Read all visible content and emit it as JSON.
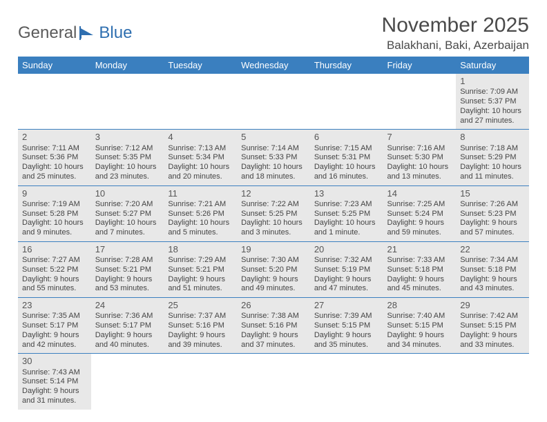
{
  "logo": {
    "text1": "General",
    "text2": "Blue"
  },
  "title": "November 2025",
  "location": "Balakhani, Baki, Azerbaijan",
  "colors": {
    "header_bg": "#3a7fbf",
    "header_text": "#ffffff",
    "shade_bg": "#e8e8e8",
    "row_border": "#3a7fbf",
    "text": "#444444",
    "logo_gray": "#5a5a5a",
    "logo_blue": "#2f6fb0"
  },
  "typography": {
    "title_fontsize": 30,
    "location_fontsize": 17,
    "header_fontsize": 13,
    "daynum_fontsize": 13,
    "cell_fontsize": 11
  },
  "weekdays": [
    "Sunday",
    "Monday",
    "Tuesday",
    "Wednesday",
    "Thursday",
    "Friday",
    "Saturday"
  ],
  "weeks": [
    [
      null,
      null,
      null,
      null,
      null,
      null,
      {
        "n": "1",
        "sr": "Sunrise: 7:09 AM",
        "ss": "Sunset: 5:37 PM",
        "dl": "Daylight: 10 hours and 27 minutes."
      }
    ],
    [
      {
        "n": "2",
        "sr": "Sunrise: 7:11 AM",
        "ss": "Sunset: 5:36 PM",
        "dl": "Daylight: 10 hours and 25 minutes."
      },
      {
        "n": "3",
        "sr": "Sunrise: 7:12 AM",
        "ss": "Sunset: 5:35 PM",
        "dl": "Daylight: 10 hours and 23 minutes."
      },
      {
        "n": "4",
        "sr": "Sunrise: 7:13 AM",
        "ss": "Sunset: 5:34 PM",
        "dl": "Daylight: 10 hours and 20 minutes."
      },
      {
        "n": "5",
        "sr": "Sunrise: 7:14 AM",
        "ss": "Sunset: 5:33 PM",
        "dl": "Daylight: 10 hours and 18 minutes."
      },
      {
        "n": "6",
        "sr": "Sunrise: 7:15 AM",
        "ss": "Sunset: 5:31 PM",
        "dl": "Daylight: 10 hours and 16 minutes."
      },
      {
        "n": "7",
        "sr": "Sunrise: 7:16 AM",
        "ss": "Sunset: 5:30 PM",
        "dl": "Daylight: 10 hours and 13 minutes."
      },
      {
        "n": "8",
        "sr": "Sunrise: 7:18 AM",
        "ss": "Sunset: 5:29 PM",
        "dl": "Daylight: 10 hours and 11 minutes."
      }
    ],
    [
      {
        "n": "9",
        "sr": "Sunrise: 7:19 AM",
        "ss": "Sunset: 5:28 PM",
        "dl": "Daylight: 10 hours and 9 minutes."
      },
      {
        "n": "10",
        "sr": "Sunrise: 7:20 AM",
        "ss": "Sunset: 5:27 PM",
        "dl": "Daylight: 10 hours and 7 minutes."
      },
      {
        "n": "11",
        "sr": "Sunrise: 7:21 AM",
        "ss": "Sunset: 5:26 PM",
        "dl": "Daylight: 10 hours and 5 minutes."
      },
      {
        "n": "12",
        "sr": "Sunrise: 7:22 AM",
        "ss": "Sunset: 5:25 PM",
        "dl": "Daylight: 10 hours and 3 minutes."
      },
      {
        "n": "13",
        "sr": "Sunrise: 7:23 AM",
        "ss": "Sunset: 5:25 PM",
        "dl": "Daylight: 10 hours and 1 minute."
      },
      {
        "n": "14",
        "sr": "Sunrise: 7:25 AM",
        "ss": "Sunset: 5:24 PM",
        "dl": "Daylight: 9 hours and 59 minutes."
      },
      {
        "n": "15",
        "sr": "Sunrise: 7:26 AM",
        "ss": "Sunset: 5:23 PM",
        "dl": "Daylight: 9 hours and 57 minutes."
      }
    ],
    [
      {
        "n": "16",
        "sr": "Sunrise: 7:27 AM",
        "ss": "Sunset: 5:22 PM",
        "dl": "Daylight: 9 hours and 55 minutes."
      },
      {
        "n": "17",
        "sr": "Sunrise: 7:28 AM",
        "ss": "Sunset: 5:21 PM",
        "dl": "Daylight: 9 hours and 53 minutes."
      },
      {
        "n": "18",
        "sr": "Sunrise: 7:29 AM",
        "ss": "Sunset: 5:21 PM",
        "dl": "Daylight: 9 hours and 51 minutes."
      },
      {
        "n": "19",
        "sr": "Sunrise: 7:30 AM",
        "ss": "Sunset: 5:20 PM",
        "dl": "Daylight: 9 hours and 49 minutes."
      },
      {
        "n": "20",
        "sr": "Sunrise: 7:32 AM",
        "ss": "Sunset: 5:19 PM",
        "dl": "Daylight: 9 hours and 47 minutes."
      },
      {
        "n": "21",
        "sr": "Sunrise: 7:33 AM",
        "ss": "Sunset: 5:18 PM",
        "dl": "Daylight: 9 hours and 45 minutes."
      },
      {
        "n": "22",
        "sr": "Sunrise: 7:34 AM",
        "ss": "Sunset: 5:18 PM",
        "dl": "Daylight: 9 hours and 43 minutes."
      }
    ],
    [
      {
        "n": "23",
        "sr": "Sunrise: 7:35 AM",
        "ss": "Sunset: 5:17 PM",
        "dl": "Daylight: 9 hours and 42 minutes."
      },
      {
        "n": "24",
        "sr": "Sunrise: 7:36 AM",
        "ss": "Sunset: 5:17 PM",
        "dl": "Daylight: 9 hours and 40 minutes."
      },
      {
        "n": "25",
        "sr": "Sunrise: 7:37 AM",
        "ss": "Sunset: 5:16 PM",
        "dl": "Daylight: 9 hours and 39 minutes."
      },
      {
        "n": "26",
        "sr": "Sunrise: 7:38 AM",
        "ss": "Sunset: 5:16 PM",
        "dl": "Daylight: 9 hours and 37 minutes."
      },
      {
        "n": "27",
        "sr": "Sunrise: 7:39 AM",
        "ss": "Sunset: 5:15 PM",
        "dl": "Daylight: 9 hours and 35 minutes."
      },
      {
        "n": "28",
        "sr": "Sunrise: 7:40 AM",
        "ss": "Sunset: 5:15 PM",
        "dl": "Daylight: 9 hours and 34 minutes."
      },
      {
        "n": "29",
        "sr": "Sunrise: 7:42 AM",
        "ss": "Sunset: 5:15 PM",
        "dl": "Daylight: 9 hours and 33 minutes."
      }
    ],
    [
      {
        "n": "30",
        "sr": "Sunrise: 7:43 AM",
        "ss": "Sunset: 5:14 PM",
        "dl": "Daylight: 9 hours and 31 minutes."
      },
      null,
      null,
      null,
      null,
      null,
      null
    ]
  ]
}
